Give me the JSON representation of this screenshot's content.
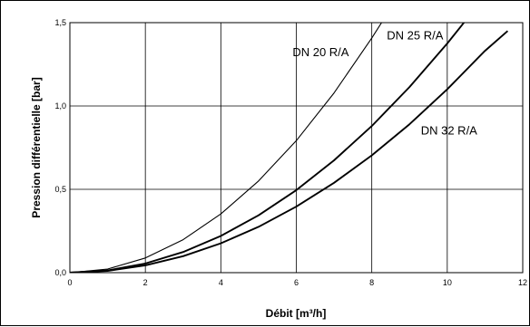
{
  "chart_data": {
    "type": "line",
    "title": "",
    "xlabel": "Débit [m³/h]",
    "ylabel": "Pression différentielle [bar]",
    "xlim": [
      0,
      12
    ],
    "ylim": [
      0,
      1.5
    ],
    "x_ticks": [
      "0",
      "2",
      "4",
      "6",
      "8",
      "10",
      "12"
    ],
    "y_ticks": [
      "0,0",
      "0,5",
      "1,0",
      "1,5"
    ],
    "grid": true,
    "legend": "none",
    "series": [
      {
        "name": "DN 20 R/A",
        "x": [
          0,
          1,
          2,
          3,
          4,
          5,
          6,
          7,
          8,
          8.4
        ],
        "y": [
          0,
          0.022,
          0.088,
          0.198,
          0.352,
          0.55,
          0.792,
          1.078,
          1.408,
          1.55
        ],
        "color": "#000000",
        "label_at": [
          5.9,
          1.3
        ]
      },
      {
        "name": "DN 25 R/A",
        "x": [
          0,
          1,
          2,
          3,
          4,
          5,
          6,
          7,
          8,
          9,
          10,
          10.6
        ],
        "y": [
          0,
          0.0138,
          0.055,
          0.124,
          0.22,
          0.344,
          0.495,
          0.674,
          0.88,
          1.114,
          1.375,
          1.545
        ],
        "color": "#000000",
        "label_at": [
          8.4,
          1.4
        ]
      },
      {
        "name": "DN 32 R/A",
        "x": [
          0,
          1,
          2,
          3,
          4,
          5,
          6,
          7,
          8,
          9,
          10,
          11,
          11.6
        ],
        "y": [
          0,
          0.011,
          0.044,
          0.099,
          0.176,
          0.275,
          0.396,
          0.539,
          0.704,
          0.891,
          1.1,
          1.331,
          1.45
        ],
        "color": "#000000",
        "label_at": [
          9.3,
          0.83
        ]
      }
    ]
  }
}
